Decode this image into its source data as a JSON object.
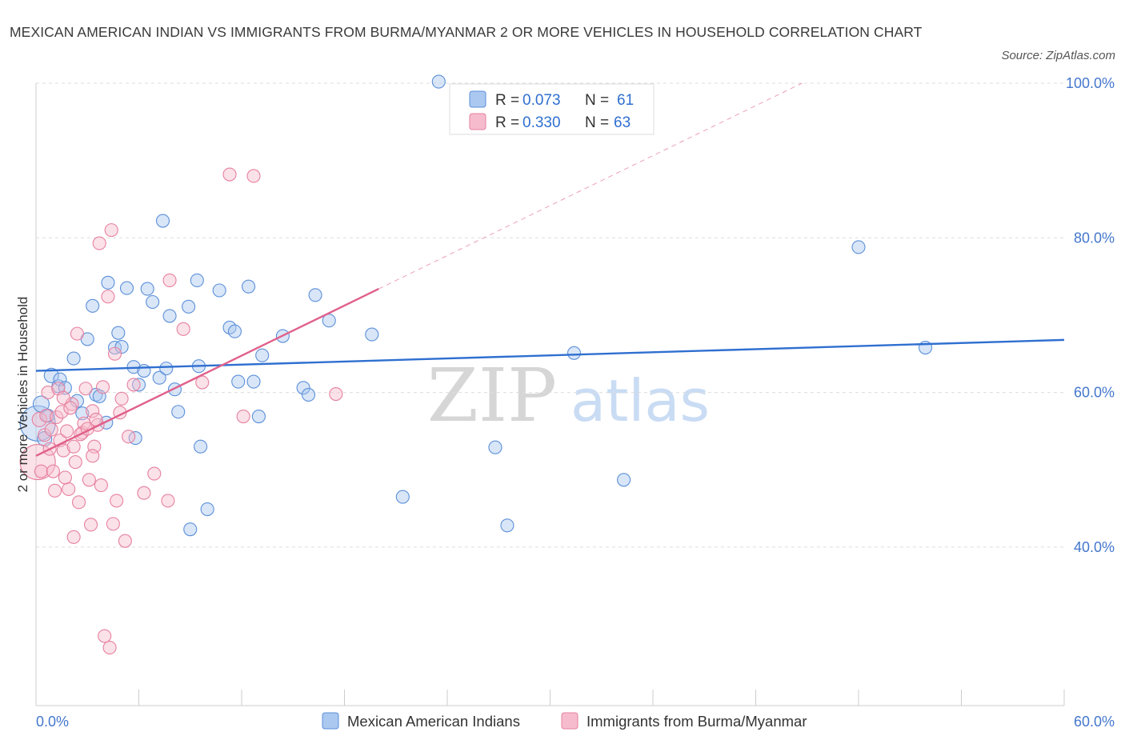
{
  "title": "MEXICAN AMERICAN INDIAN VS IMMIGRANTS FROM BURMA/MYANMAR 2 OR MORE VEHICLES IN HOUSEHOLD CORRELATION CHART",
  "source": "Source: ZipAtlas.com",
  "watermark": {
    "zip": "ZIP",
    "atlas": "atlas"
  },
  "colors": {
    "blue": "#5b8fd9",
    "blue_fill": "#aac8f0",
    "blue_line": "#2f6fd0",
    "pink": "#e6809f",
    "pink_fill": "#f6bccd",
    "pink_line": "#e0608a",
    "grid": "#dddddd",
    "axis_label": "#4477cc"
  },
  "legend": {
    "rows": [
      {
        "r_label": "R = ",
        "r_value": "0.073",
        "n_label": "N = ",
        "n_value": "61",
        "series": "blue"
      },
      {
        "r_label": "R = ",
        "r_value": "0.330",
        "n_label": "N = ",
        "n_value": "63",
        "series": "pink"
      }
    ]
  },
  "chart_data": {
    "type": "scatter",
    "title": "MEXICAN AMERICAN INDIAN VS IMMIGRANTS FROM BURMA/MYANMAR 2 OR MORE VEHICLES IN HOUSEHOLD CORRELATION CHART",
    "xlabel": "",
    "ylabel": "2 or more Vehicles in Household",
    "xlim": [
      0,
      60
    ],
    "ylim": [
      19.5,
      100
    ],
    "x_tick_labels": [
      "0.0%",
      "60.0%"
    ],
    "y_ticks": [
      40,
      60,
      80,
      100
    ],
    "y_tick_labels": [
      "40.0%",
      "60.0%",
      "80.0%",
      "100.0%"
    ],
    "grid": true,
    "legend_position": "top-center",
    "series": [
      {
        "name": "Mexican American Indians",
        "color": "blue",
        "trend": {
          "x": [
            0,
            60
          ],
          "y": [
            62.8,
            66.8
          ],
          "style": "solid"
        },
        "points": [
          [
            0.1,
            56.0,
            22
          ],
          [
            0.3,
            58.5,
            10
          ],
          [
            0.5,
            54.0,
            9
          ],
          [
            0.7,
            57.0,
            8
          ],
          [
            0.9,
            62.2,
            9
          ],
          [
            1.3,
            60.8,
            8
          ],
          [
            1.4,
            61.7,
            8
          ],
          [
            1.7,
            60.6,
            8
          ],
          [
            2.2,
            64.4,
            8
          ],
          [
            2.4,
            58.9,
            8
          ],
          [
            2.7,
            57.3,
            8
          ],
          [
            3.0,
            66.9,
            8
          ],
          [
            3.3,
            71.2,
            8
          ],
          [
            3.5,
            59.7,
            8
          ],
          [
            3.7,
            59.5,
            8
          ],
          [
            4.1,
            56.1,
            8
          ],
          [
            4.2,
            74.2,
            8
          ],
          [
            4.6,
            65.8,
            8
          ],
          [
            4.8,
            67.7,
            8
          ],
          [
            5.0,
            65.9,
            8
          ],
          [
            5.3,
            73.5,
            8
          ],
          [
            5.7,
            63.3,
            8
          ],
          [
            5.8,
            54.1,
            8
          ],
          [
            6.0,
            61.0,
            8
          ],
          [
            6.3,
            62.8,
            8
          ],
          [
            6.5,
            73.4,
            8
          ],
          [
            6.8,
            71.7,
            8
          ],
          [
            7.2,
            61.9,
            8
          ],
          [
            7.4,
            82.2,
            8
          ],
          [
            7.6,
            63.1,
            8
          ],
          [
            7.8,
            69.9,
            8
          ],
          [
            8.1,
            60.4,
            8
          ],
          [
            8.3,
            57.5,
            8
          ],
          [
            8.9,
            71.1,
            8
          ],
          [
            9.4,
            74.5,
            8
          ],
          [
            9.5,
            63.4,
            8
          ],
          [
            9.6,
            53.0,
            8
          ],
          [
            10.7,
            73.2,
            8
          ],
          [
            11.3,
            68.4,
            8
          ],
          [
            11.6,
            67.9,
            8
          ],
          [
            11.8,
            61.4,
            8
          ],
          [
            12.4,
            73.7,
            8
          ],
          [
            12.7,
            61.4,
            8
          ],
          [
            13.2,
            64.8,
            8
          ],
          [
            13.0,
            56.9,
            8
          ],
          [
            14.4,
            67.3,
            8
          ],
          [
            15.6,
            60.6,
            8
          ],
          [
            15.9,
            59.7,
            8
          ],
          [
            16.3,
            72.6,
            8
          ],
          [
            17.1,
            69.3,
            8
          ],
          [
            19.6,
            67.5,
            8
          ],
          [
            21.4,
            46.5,
            8
          ],
          [
            23.5,
            100.2,
            8
          ],
          [
            26.8,
            52.9,
            8
          ],
          [
            27.5,
            42.8,
            8
          ],
          [
            31.4,
            65.1,
            8
          ],
          [
            34.3,
            48.7,
            8
          ],
          [
            48.0,
            78.8,
            8
          ],
          [
            51.9,
            65.8,
            8
          ],
          [
            9.0,
            42.3,
            8
          ],
          [
            10.0,
            44.9,
            8
          ]
        ]
      },
      {
        "name": "Immigrants from Burma/Myanmar",
        "color": "pink",
        "trend": {
          "x": [
            0,
            20
          ],
          "y": [
            51.8,
            73.4
          ],
          "style": "solid",
          "extended": {
            "x": [
              20,
              44.7
            ],
            "y": [
              73.4,
              100
            ],
            "style": "dashed"
          }
        },
        "points": [
          [
            0.1,
            51.0,
            22
          ],
          [
            0.2,
            56.5,
            9
          ],
          [
            0.3,
            49.8,
            8
          ],
          [
            0.5,
            54.5,
            8
          ],
          [
            0.6,
            57.0,
            8
          ],
          [
            0.7,
            60.0,
            8
          ],
          [
            0.9,
            55.2,
            8
          ],
          [
            1.0,
            49.8,
            8
          ],
          [
            1.1,
            47.3,
            8
          ],
          [
            1.2,
            56.8,
            8
          ],
          [
            1.3,
            60.5,
            8
          ],
          [
            1.4,
            53.8,
            8
          ],
          [
            1.5,
            57.5,
            8
          ],
          [
            1.6,
            52.5,
            8
          ],
          [
            1.8,
            55.0,
            8
          ],
          [
            1.9,
            47.5,
            8
          ],
          [
            2.1,
            58.5,
            8
          ],
          [
            2.2,
            41.3,
            8
          ],
          [
            2.3,
            51.0,
            8
          ],
          [
            2.4,
            67.6,
            8
          ],
          [
            2.5,
            45.8,
            8
          ],
          [
            2.7,
            54.8,
            8
          ],
          [
            2.8,
            56.0,
            8
          ],
          [
            2.9,
            60.5,
            8
          ],
          [
            3.1,
            48.7,
            8
          ],
          [
            3.2,
            42.9,
            8
          ],
          [
            3.3,
            57.6,
            8
          ],
          [
            3.4,
            53.0,
            8
          ],
          [
            3.6,
            55.8,
            8
          ],
          [
            3.7,
            79.3,
            8
          ],
          [
            3.8,
            48.0,
            8
          ],
          [
            3.9,
            60.7,
            8
          ],
          [
            4.0,
            28.5,
            8
          ],
          [
            4.2,
            72.4,
            8
          ],
          [
            4.3,
            27.0,
            8
          ],
          [
            4.4,
            81.0,
            8
          ],
          [
            4.5,
            43.0,
            8
          ],
          [
            4.6,
            65.0,
            8
          ],
          [
            4.7,
            46.0,
            8
          ],
          [
            4.9,
            57.4,
            8
          ],
          [
            5.0,
            59.2,
            8
          ],
          [
            5.2,
            40.8,
            8
          ],
          [
            5.4,
            54.3,
            8
          ],
          [
            5.7,
            61.0,
            8
          ],
          [
            6.3,
            47.0,
            8
          ],
          [
            6.9,
            49.5,
            8
          ],
          [
            7.7,
            46.0,
            8
          ],
          [
            7.8,
            74.5,
            8
          ],
          [
            8.6,
            68.2,
            8
          ],
          [
            9.7,
            61.3,
            8
          ],
          [
            11.3,
            88.2,
            8
          ],
          [
            12.1,
            56.9,
            8
          ],
          [
            12.7,
            88.0,
            8
          ],
          [
            17.5,
            59.8,
            8
          ],
          [
            1.6,
            59.3,
            8
          ],
          [
            2.0,
            58.0,
            8
          ],
          [
            2.6,
            54.6,
            8
          ],
          [
            3.0,
            55.3,
            8
          ],
          [
            3.5,
            56.5,
            8
          ],
          [
            0.8,
            52.7,
            8
          ],
          [
            1.7,
            49.0,
            8
          ],
          [
            2.2,
            53.0,
            8
          ],
          [
            3.3,
            51.8,
            8
          ]
        ]
      }
    ]
  },
  "bottom_legend": [
    {
      "label": "Mexican American Indians",
      "color": "blue"
    },
    {
      "label": "Immigrants from Burma/Myanmar",
      "color": "pink"
    }
  ]
}
